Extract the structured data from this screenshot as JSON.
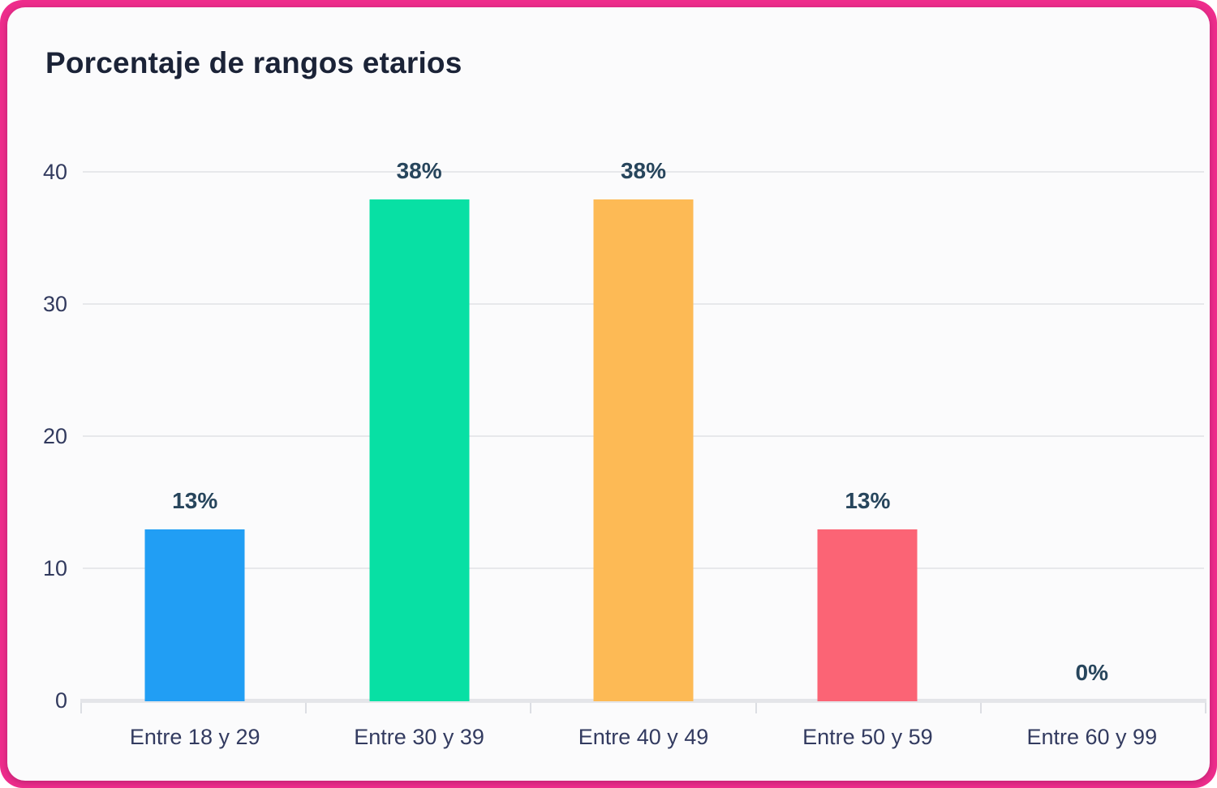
{
  "chart_data": {
    "type": "bar",
    "title": "Porcentaje de rangos etarios",
    "categories": [
      "Entre 18 y 29",
      "Entre 30 y 39",
      "Entre 40 y 49",
      "Entre 50 y 59",
      "Entre 60 y 99"
    ],
    "values": [
      13,
      38,
      38,
      13,
      0
    ],
    "value_labels": [
      "13%",
      "38%",
      "38%",
      "13%",
      "0%"
    ],
    "bar_colors": [
      "#219ef4",
      "#08e0a4",
      "#fdba55",
      "#fb6475",
      null
    ],
    "yticks": [
      0,
      10,
      20,
      30,
      40
    ],
    "ylim": [
      0,
      40
    ],
    "xlabel": "",
    "ylabel": "",
    "grid": "horizontal",
    "legend": "none",
    "colors": {
      "frame_border": "#ee2d8c",
      "card_background": "#fbfbfc",
      "title_text": "#1b2337",
      "axis_label_text": "#323a5e",
      "value_label_text": "#27455c",
      "gridline": "#e7e8eb",
      "axis_line": "#e4e5e9"
    }
  }
}
